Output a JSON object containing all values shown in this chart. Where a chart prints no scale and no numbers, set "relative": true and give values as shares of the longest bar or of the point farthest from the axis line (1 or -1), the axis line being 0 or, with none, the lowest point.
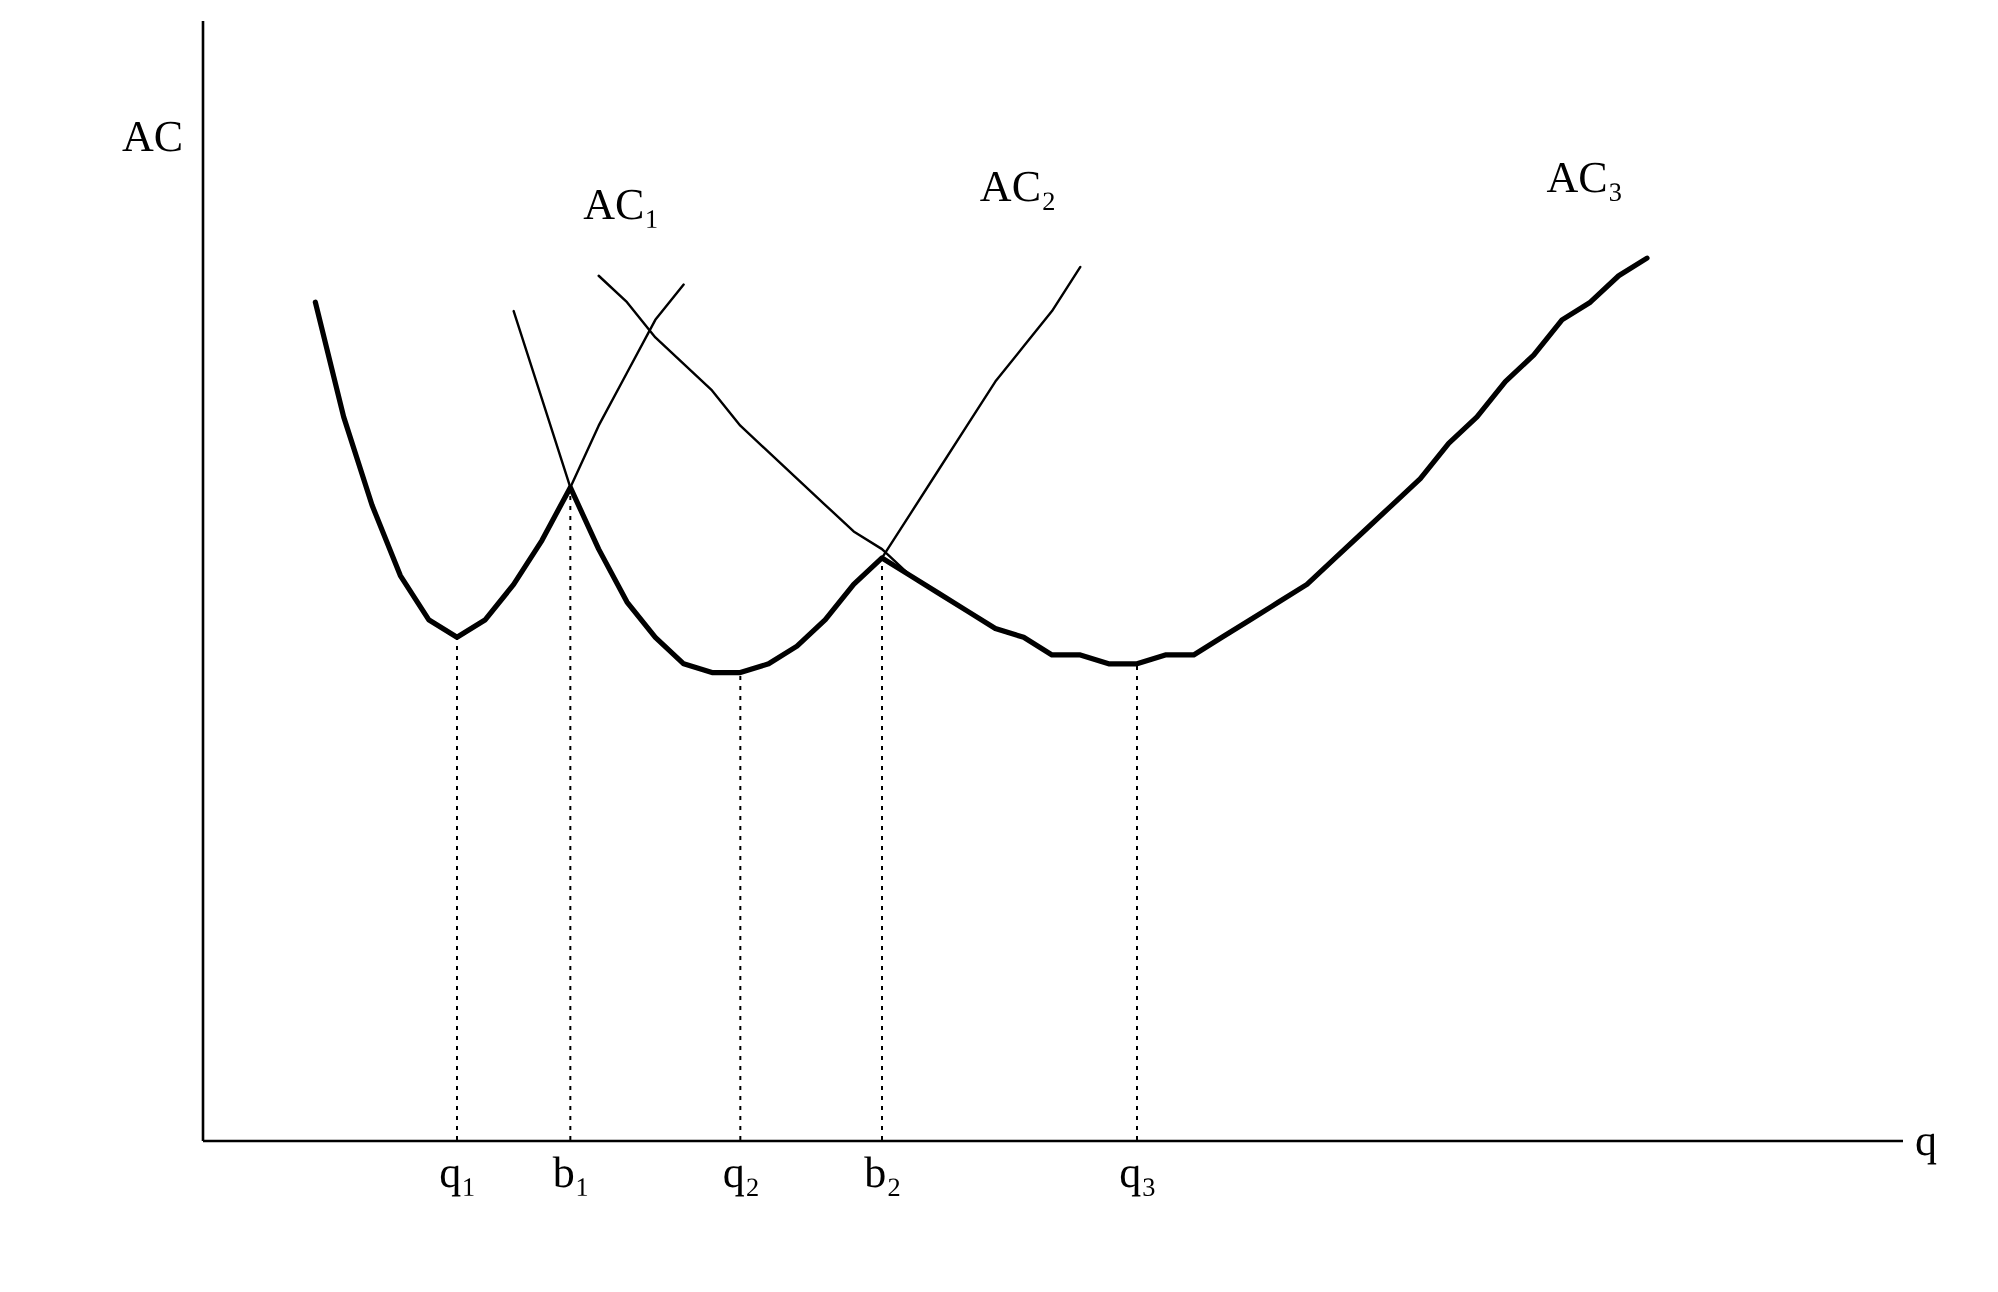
{
  "chart_data": {
    "type": "line",
    "relative": true,
    "ylabel": "AC",
    "xlabel": "q",
    "grid": false,
    "line_style": "solid",
    "marker": "none",
    "categories": [
      null,
      null,
      null,
      null,
      null,
      null,
      null,
      null,
      null,
      "q₁",
      null,
      null,
      null,
      "b₁",
      null,
      null,
      null,
      null,
      null,
      "q₂",
      null,
      null,
      null,
      null,
      "b₂",
      null,
      null,
      null,
      null,
      null,
      null,
      null,
      null,
      "q₃",
      null,
      null,
      null,
      null,
      null,
      null,
      null,
      null,
      null,
      null,
      null,
      null,
      null,
      null,
      null,
      null,
      null,
      null,
      null,
      null,
      null,
      null,
      null,
      null,
      null,
      null,
      null
    ],
    "series": [
      {
        "name": "AC₁",
        "color": "#000000",
        "values": [
          null,
          null,
          null,
          null,
          0.95,
          0.82,
          0.72,
          0.64,
          0.59,
          0.57,
          0.59,
          0.63,
          0.68,
          0.74,
          0.81,
          0.87,
          0.93,
          0.97,
          null,
          null,
          null,
          null,
          null,
          null,
          null,
          null,
          null,
          null,
          null,
          null,
          null,
          null,
          null,
          null,
          null,
          null,
          null,
          null,
          null,
          null,
          null,
          null,
          null,
          null,
          null,
          null,
          null,
          null,
          null,
          null,
          null,
          null,
          null,
          null,
          null,
          null,
          null,
          null,
          null,
          null,
          null
        ]
      },
      {
        "name": "AC₂",
        "color": "#000000",
        "values": [
          null,
          null,
          null,
          null,
          null,
          null,
          null,
          null,
          null,
          null,
          null,
          0.94,
          0.84,
          0.74,
          0.67,
          0.61,
          0.57,
          0.54,
          0.53,
          0.53,
          0.54,
          0.56,
          0.59,
          0.63,
          0.66,
          0.71,
          0.76,
          0.81,
          0.86,
          0.9,
          0.94,
          0.99,
          null,
          null,
          null,
          null,
          null,
          null,
          null,
          null,
          null,
          null,
          null,
          null,
          null,
          null,
          null,
          null,
          null,
          null,
          null,
          null,
          null,
          null,
          null,
          null,
          null,
          null,
          null,
          null,
          null
        ]
      },
      {
        "name": "AC₃",
        "color": "#000000",
        "values": [
          null,
          null,
          null,
          null,
          null,
          null,
          null,
          null,
          null,
          null,
          null,
          null,
          null,
          null,
          0.98,
          0.95,
          0.91,
          0.88,
          0.85,
          0.81,
          0.78,
          0.75,
          0.72,
          0.69,
          0.67,
          0.64,
          0.62,
          0.6,
          0.58,
          0.57,
          0.55,
          0.55,
          0.54,
          0.54,
          0.55,
          0.55,
          0.57,
          0.59,
          0.61,
          0.63,
          0.66,
          0.69,
          0.72,
          0.75,
          0.79,
          0.82,
          0.86,
          0.89,
          0.93,
          0.95,
          0.98,
          1,
          null,
          null,
          null,
          null,
          null,
          null,
          null,
          null,
          null
        ]
      },
      {
        "color": "#000000",
        "values": [
          null,
          null,
          null,
          null,
          0.95,
          0.82,
          0.72,
          0.64,
          0.59,
          0.57,
          0.59,
          0.63,
          0.68,
          0.74,
          0.67,
          0.61,
          0.57,
          0.54,
          0.53,
          0.53,
          0.54,
          0.56,
          0.59,
          0.63,
          0.66,
          0.64,
          0.62,
          0.6,
          0.58,
          0.57,
          0.55,
          0.55,
          0.54,
          0.54,
          0.55,
          0.55,
          0.57,
          0.59,
          0.61,
          0.63,
          0.66,
          0.69,
          0.72,
          0.75,
          0.79,
          0.82,
          0.86,
          0.89,
          0.93,
          0.95,
          0.98,
          1,
          null,
          null,
          null,
          null,
          null,
          null,
          null,
          null,
          null
        ]
      }
    ],
    "ref_lines": [
      {
        "axis": "x",
        "value": "q₁",
        "line_style": "dotted"
      },
      {
        "axis": "x",
        "value": "b₁",
        "line_style": "dotted"
      },
      {
        "axis": "x",
        "value": "q₂",
        "line_style": "dotted"
      },
      {
        "axis": "x",
        "value": "b₂",
        "line_style": "dotted"
      },
      {
        "axis": "x",
        "value": "q₃",
        "line_style": "dotted"
      }
    ]
  }
}
